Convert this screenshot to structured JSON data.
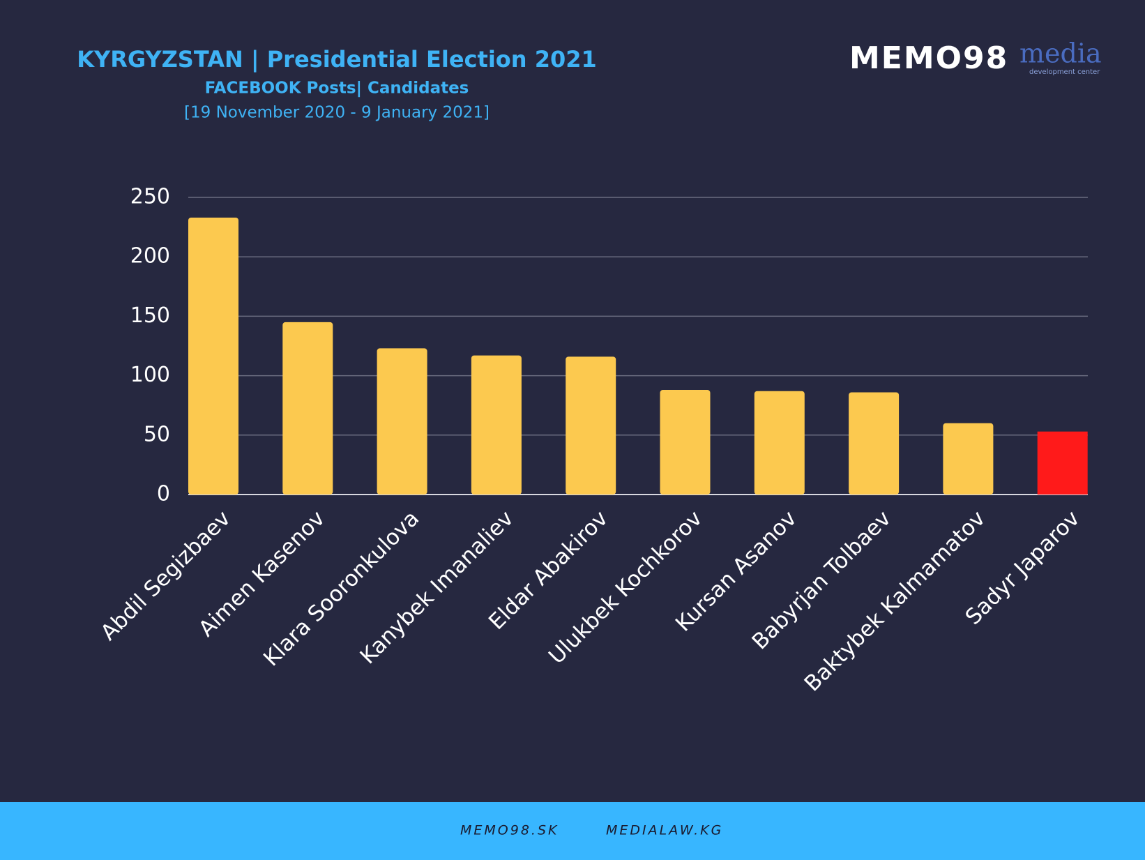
{
  "chart_data": {
    "type": "bar",
    "title": "KYRGYZSTAN | Presidential Election 2021",
    "subtitle": "FACEBOOK Posts| Candidates",
    "date_range": "[19 November 2020 - 9 January 2021]",
    "categories": [
      "Abdil Segizbaev",
      "Aimen Kasenov",
      "Klara Sooronkulova",
      "Kanybek Imanaliev",
      "Eldar Abakirov",
      "Ulukbek Kochkorov",
      "Kursan Asanov",
      "Babyrjan Tolbaev",
      "Baktybek Kalmamatov",
      "Sadyr Japarov"
    ],
    "values": [
      233,
      145,
      123,
      117,
      116,
      88,
      87,
      86,
      60,
      53
    ],
    "colors": [
      "#fcc94f",
      "#fcc94f",
      "#fcc94f",
      "#fcc94f",
      "#fcc94f",
      "#fcc94f",
      "#fcc94f",
      "#fcc94f",
      "#fcc94f",
      "#ff1a1a"
    ],
    "ylim": [
      0,
      250
    ],
    "yticks": [
      0,
      50,
      100,
      150,
      200,
      250
    ],
    "grid": true
  },
  "logos": [
    "MEMO98",
    "media",
    "development center"
  ],
  "footer": [
    "MEMO98.SK",
    "MEDIALAW.KG"
  ]
}
